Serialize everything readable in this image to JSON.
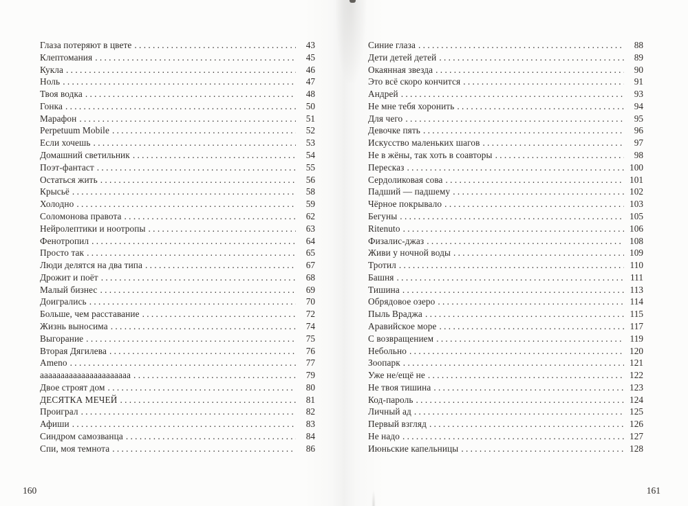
{
  "pages": [
    {
      "folio": "160",
      "entries": [
        {
          "title": "Глаза потеряют в цвете",
          "page": "43"
        },
        {
          "title": "Клептомания",
          "page": "45"
        },
        {
          "title": "Кукла",
          "page": "46"
        },
        {
          "title": "Ноль",
          "page": "47"
        },
        {
          "title": "Твоя водка",
          "page": "48"
        },
        {
          "title": "Гонка",
          "page": "50"
        },
        {
          "title": "Марафон",
          "page": "51"
        },
        {
          "title": "Perpetuum Mobile",
          "page": "52"
        },
        {
          "title": "Если хочешь",
          "page": "53"
        },
        {
          "title": "Домашний светильник",
          "page": "54"
        },
        {
          "title": "Поэт-фантаст",
          "page": "55"
        },
        {
          "title": "Остаться жить",
          "page": "56"
        },
        {
          "title": "Крысьё",
          "page": "58"
        },
        {
          "title": "Холодно",
          "page": "59"
        },
        {
          "title": "Соломонова правота",
          "page": "62"
        },
        {
          "title": "Нейролептики и ноотропы",
          "page": "63"
        },
        {
          "title": "Фенотропил",
          "page": "64"
        },
        {
          "title": "Просто так",
          "page": "65"
        },
        {
          "title": "Люди делятся на два типа",
          "page": "67"
        },
        {
          "title": "Дрожит и поёт",
          "page": "68"
        },
        {
          "title": "Малый бизнес",
          "page": "69"
        },
        {
          "title": "Доигрались",
          "page": "70"
        },
        {
          "title": "Больше, чем расставание",
          "page": "72"
        },
        {
          "title": "Жизнь выносима",
          "page": "74"
        },
        {
          "title": "Выгорание",
          "page": "75"
        },
        {
          "title": "Вторая Дягилева",
          "page": "76"
        },
        {
          "title": "Ameno",
          "page": "77"
        },
        {
          "title": "аааааааааааааааааааааа",
          "page": "79"
        },
        {
          "title": "Двое строят дом",
          "page": "80"
        },
        {
          "title": "ДЕСЯТКА МЕЧЕЙ",
          "page": "81"
        },
        {
          "title": "Проиграл",
          "page": "82"
        },
        {
          "title": "Афиши",
          "page": "83"
        },
        {
          "title": "Синдром самозванца",
          "page": "84"
        },
        {
          "title": "Спи, моя темнота",
          "page": "86"
        }
      ]
    },
    {
      "folio": "161",
      "entries": [
        {
          "title": "Синие глаза",
          "page": "88"
        },
        {
          "title": "Дети детей детей",
          "page": "89"
        },
        {
          "title": "Окаянная звезда",
          "page": "90"
        },
        {
          "title": "Это всё скоро кончится",
          "page": "91"
        },
        {
          "title": "Андрей",
          "page": "93"
        },
        {
          "title": "Не мне тебя хоронить",
          "page": "94"
        },
        {
          "title": "Для чего",
          "page": "95"
        },
        {
          "title": "Девочке пять",
          "page": "96"
        },
        {
          "title": "Искусство маленьких шагов",
          "page": "97"
        },
        {
          "title": "Не в жёны, так хоть в соавторы",
          "page": "98"
        },
        {
          "title": "Пересказ",
          "page": "100"
        },
        {
          "title": "Сердоликовая сова",
          "page": "101"
        },
        {
          "title": "Падший — падшему",
          "page": "102"
        },
        {
          "title": "Чёрное покрывало",
          "page": "103"
        },
        {
          "title": "Бегуны",
          "page": "105"
        },
        {
          "title": "Ritenuto",
          "page": "106"
        },
        {
          "title": "Физалис-джаз",
          "page": "108"
        },
        {
          "title": "Живи у ночной воды",
          "page": "109"
        },
        {
          "title": "Тротил",
          "page": "110"
        },
        {
          "title": "Башня",
          "page": "111"
        },
        {
          "title": "Тишина",
          "page": "113"
        },
        {
          "title": "Обрядовое озеро",
          "page": "114"
        },
        {
          "title": "Пыль Враджа",
          "page": "115"
        },
        {
          "title": "Аравийское море",
          "page": "117"
        },
        {
          "title": "С возвращением",
          "page": "119"
        },
        {
          "title": "Небольно",
          "page": "120"
        },
        {
          "title": "Зоопарк",
          "page": "121"
        },
        {
          "title": "Уже не/ещё не",
          "page": "122"
        },
        {
          "title": "Не твоя тишина",
          "page": "123"
        },
        {
          "title": "Код-пароль",
          "page": "124"
        },
        {
          "title": "Личный ад",
          "page": "125"
        },
        {
          "title": "Первый взгляд",
          "page": "126"
        },
        {
          "title": "Не надо",
          "page": "127"
        },
        {
          "title": "Июньские капельницы",
          "page": "128"
        }
      ]
    }
  ]
}
